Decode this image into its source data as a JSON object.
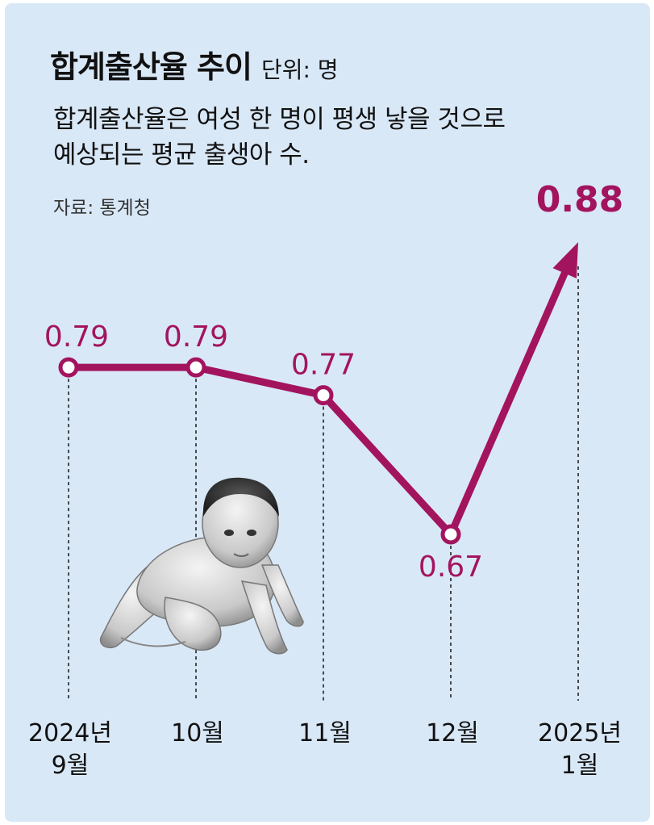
{
  "header": {
    "title": "합계출산율 추이",
    "unit": "단위: 명",
    "description_line1": "합계출산율은 여성 한 명이 평생 낳을 것으로",
    "description_line2": "예상되는 평균 출생아 수.",
    "source": "자료: 통계청"
  },
  "colors": {
    "background": "#d9e8f7",
    "series": "#a3145f",
    "text": "#111111"
  },
  "chart_data": {
    "type": "line",
    "title": "합계출산율 추이",
    "unit": "단위: 명",
    "categories": [
      [
        "2024년",
        "9월"
      ],
      [
        "10월"
      ],
      [
        "11월"
      ],
      [
        "12월"
      ],
      [
        "2025년",
        "1월"
      ]
    ],
    "series": [
      {
        "values": [
          0.79,
          0.79,
          0.77,
          0.67,
          0.88
        ]
      }
    ],
    "data_labels": [
      "0.79",
      "0.79",
      "0.77",
      "0.67",
      "0.88"
    ],
    "last_point_marker": "arrow",
    "grid": false,
    "legend": "none",
    "decoration": "crawling-baby-illustration"
  }
}
